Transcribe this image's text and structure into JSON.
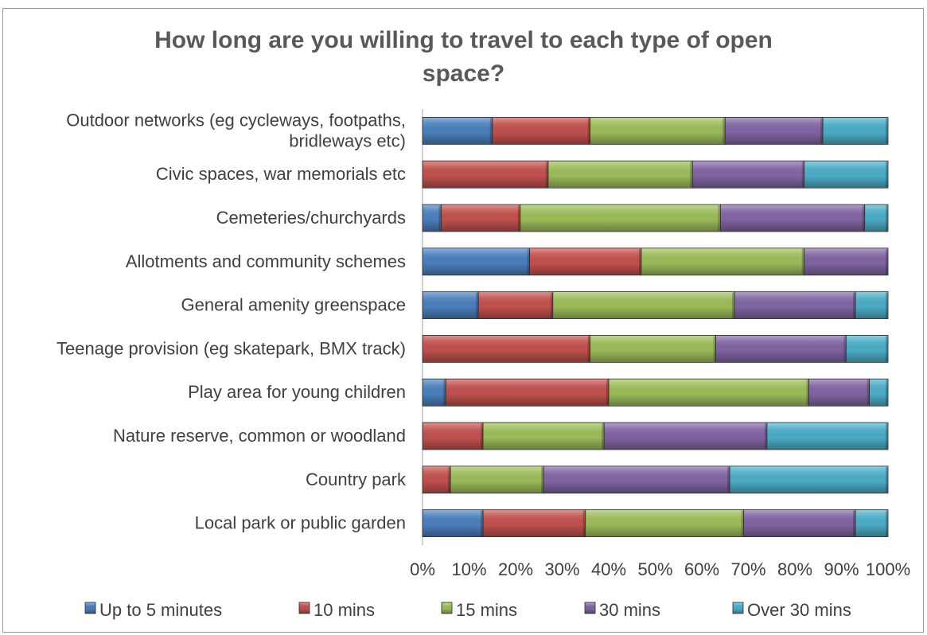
{
  "chart_data": {
    "type": "bar",
    "orientation": "horizontal",
    "stacking": "percent",
    "title_lines": [
      "How long are you willing to travel to each type of open",
      "space?"
    ],
    "xlabel": "",
    "ylabel": "",
    "xlim": [
      0,
      100
    ],
    "x_ticks": [
      "0%",
      "10%",
      "20%",
      "30%",
      "40%",
      "50%",
      "60%",
      "70%",
      "80%",
      "90%",
      "100%"
    ],
    "grid": false,
    "legend_position": "bottom",
    "categories": [
      [
        "Outdoor networks (eg cycleways, footpaths,",
        "bridleways etc)"
      ],
      [
        "Civic spaces, war memorials etc"
      ],
      [
        "Cemeteries/churchyards"
      ],
      [
        "Allotments and community schemes"
      ],
      [
        "General amenity greenspace"
      ],
      [
        "Teenage provision (eg skatepark, BMX track)"
      ],
      [
        "Play area for young children"
      ],
      [
        "Nature reserve, common or woodland"
      ],
      [
        "Country park"
      ],
      [
        "Local park or public garden"
      ]
    ],
    "series": [
      {
        "name": "Up to 5 minutes",
        "color": "#4a7ebb",
        "values": [
          15,
          0,
          4,
          23,
          12,
          0,
          5,
          0,
          0,
          13
        ]
      },
      {
        "name": "10 mins",
        "color": "#c0504d",
        "values": [
          21,
          27,
          17,
          24,
          16,
          36,
          35,
          13,
          6,
          22
        ]
      },
      {
        "name": "15 mins",
        "color": "#9bbb59",
        "values": [
          29,
          31,
          43,
          35,
          39,
          27,
          43,
          26,
          20,
          34
        ]
      },
      {
        "name": "30 mins",
        "color": "#8064a2",
        "values": [
          21,
          24,
          31,
          18,
          26,
          28,
          13,
          35,
          40,
          24
        ]
      },
      {
        "name": "Over 30 mins",
        "color": "#4bacc6",
        "values": [
          14,
          18,
          5,
          0,
          7,
          9,
          4,
          26,
          34,
          7
        ]
      }
    ]
  }
}
